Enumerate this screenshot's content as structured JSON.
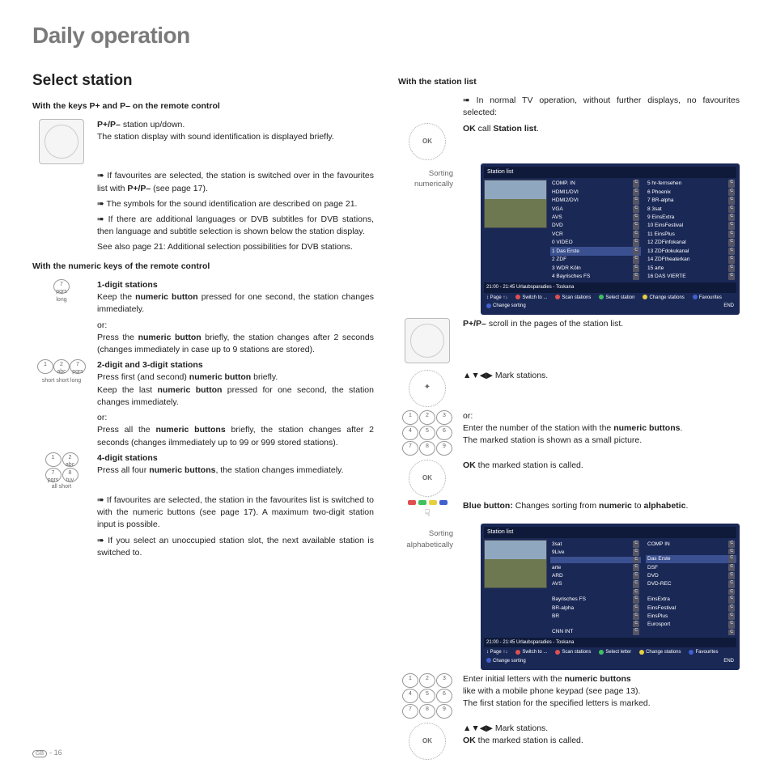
{
  "page": {
    "title": "Daily operation",
    "subtitle": "Select station",
    "number": "16",
    "region": "GB"
  },
  "left": {
    "h_pkeys": "With the keys P+ and P– on the remote control",
    "pkeys_bold": "P+/P–",
    "pkeys_t1": " station up/down.",
    "pkeys_t2": "The station display with sound identification is displayed briefly.",
    "pkeys_b1a": "➠ If favourites are selected, the station is switched over in the favourites list with ",
    "pkeys_b1b": "P+/P–",
    "pkeys_b1c": " (see page 17).",
    "pkeys_b2": "➠ The symbols for the sound identification are described on page 21.",
    "pkeys_b3": "➠ If there are additional languages or DVB subtitles for DVB stations, then language and subtitle selection is shown below the station display.",
    "pkeys_b4": "See also page 21: Additional selection possibilities for DVB stations.",
    "h_numeric": "With the numeric keys of the remote control",
    "d1_h": "1-digit stations",
    "d1_a": "Keep the ",
    "d1_b": "numeric button",
    "d1_c": " pressed for one second, the station changes immediately.",
    "d1_or": "or:",
    "d1_d": "Press the ",
    "d1_e": "numeric button",
    "d1_f": " briefly, the station changes after 2 seconds (changes immediately in case up to 9 stations are stored).",
    "d23_h": "2-digit and 3-digit stations",
    "d23_a": "Press first (and second) ",
    "d23_b": "numeric button",
    "d23_c": " briefly.",
    "d23_d": "Keep the last ",
    "d23_e": "numeric button",
    "d23_f": " pressed for one second, the station changes immediately.",
    "d23_or": "or:",
    "d23_g": "Press all the ",
    "d23_h2": "numeric buttons",
    "d23_i": " briefly, the station changes after 2 seconds (changes ilmmediately up to 99 or 999 stored stations).",
    "d4_h": "4-digit stations",
    "d4_a": "Press all four ",
    "d4_b": "numeric buttons",
    "d4_c": ", the station changes immediately.",
    "fav": "➠ If favourites are selected, the station in the favourites list is switched to with the numeric buttons (see page 17). A maximum two-digit station input is possible.",
    "slot": "➠ If you select an unoccupied station slot, the next available station is switched to.",
    "cap_long": "long",
    "cap_ssl": "short  short  long",
    "cap_all": "all short"
  },
  "right": {
    "h_list": "With the station list",
    "intro": "➠ In normal TV operation, without further displays, no favourites selected:",
    "ok": "OK",
    "ok_call_a": "  call ",
    "ok_call_b": "Station list",
    "ok_call_c": ".",
    "sort_num": "Sorting numerically",
    "scroll_a": "P+/P–",
    "scroll_b": " scroll in the pages of the station list.",
    "mark": "▲▼◀▶  Mark stations.",
    "or": "or:",
    "enter_a": "Enter the number of the station with the ",
    "enter_b": "numeric buttons",
    "enter_c": ".",
    "small": "The marked station is shown as a small picture.",
    "ok2": "OK",
    "ok2_a": "  the marked station is called.",
    "blue_a": "Blue button:",
    "blue_b": " Changes sorting from ",
    "blue_c": "numeric",
    "blue_d": " to ",
    "blue_e": "alphabetic",
    "blue_f": ".",
    "sort_alpha": "Sorting alphabetically",
    "letters_a": "Enter initial letters with the ",
    "letters_b": "numeric buttons",
    "letters_c": "like with a mobile phone keypad (see page 13).",
    "first": "The first station for the specified letters is marked.",
    "mark2": "▲▼◀▶ Mark stations.",
    "ok3": "OK",
    "ok3_a": "  the marked station is called."
  },
  "tv1": {
    "header": "Station list",
    "left": [
      [
        "",
        "COMP. IN"
      ],
      [
        "",
        "HDMI1/DVI"
      ],
      [
        "",
        "HDMI2/DVI"
      ],
      [
        "",
        "VGA"
      ],
      [
        "",
        "AVS"
      ],
      [
        "",
        "DVD"
      ],
      [
        "",
        "VCR"
      ],
      [
        "0",
        "VIDEO"
      ],
      [
        "1",
        "Das Erste"
      ],
      [
        "2",
        "ZDF"
      ],
      [
        "3",
        "WDR Köln"
      ],
      [
        "4",
        "Bayrisches FS"
      ]
    ],
    "right": [
      [
        "5",
        "hr-fernsehen"
      ],
      [
        "6",
        "Phoenix"
      ],
      [
        "7",
        "BR-alpha"
      ],
      [
        "8",
        "3sat"
      ],
      [
        "9",
        "EinsExtra"
      ],
      [
        "10",
        "EinsFestival"
      ],
      [
        "11",
        "EinsPlus"
      ],
      [
        "12",
        "ZDFinfokanal"
      ],
      [
        "13",
        "ZDFdokukanal"
      ],
      [
        "14",
        "ZDFtheaterkan"
      ],
      [
        "15",
        "arte"
      ],
      [
        "16",
        "DAS VIERTE"
      ]
    ],
    "sel_index": 8,
    "footer": "21:00 - 21:45  Urlaubsparadies - Toskana",
    "legend": [
      {
        "c": "#e05050",
        "t": "Switch to ..."
      },
      {
        "c": "#e05050",
        "t": "Scan stations"
      },
      {
        "c": "#40c060",
        "t": "Select station"
      },
      {
        "c": "#e6d040",
        "t": "Change stations"
      },
      {
        "c": "#4060d0",
        "t": "Favourites"
      },
      {
        "c": "#4060d0",
        "t": "Change sorting"
      }
    ],
    "page": "Page ↑↓"
  },
  "tv2": {
    "header": "Station list",
    "left": [
      [
        "3sat",
        ""
      ],
      [
        "9Live",
        ""
      ],
      [
        "",
        ""
      ],
      [
        "arte",
        ""
      ],
      [
        "ARD",
        ""
      ],
      [
        "AVS",
        ""
      ],
      [
        "",
        ""
      ],
      [
        "Bayrisches FS",
        ""
      ],
      [
        "BR-alpha",
        ""
      ],
      [
        "BR",
        ""
      ],
      [
        "",
        ""
      ],
      [
        "CNN INT",
        ""
      ]
    ],
    "right": [
      [
        "COMP IN",
        ""
      ],
      [
        "",
        ""
      ],
      [
        "Das Erste",
        ""
      ],
      [
        "DSF",
        ""
      ],
      [
        "DVD",
        ""
      ],
      [
        "DVD-REC",
        ""
      ],
      [
        "",
        ""
      ],
      [
        "EinsExtra",
        ""
      ],
      [
        "EinsFestival",
        ""
      ],
      [
        "EinsPlus",
        ""
      ],
      [
        "Eurosport",
        ""
      ],
      [
        "",
        ""
      ]
    ],
    "sel_index": 2,
    "footer": "21:00 - 21:45  Urlaubsparadies - Toskana",
    "legend": [
      {
        "c": "#e05050",
        "t": "Switch to ..."
      },
      {
        "c": "#e05050",
        "t": "Scan stations"
      },
      {
        "c": "#40c060",
        "t": "Select letter"
      },
      {
        "c": "#e6d040",
        "t": "Change stations"
      },
      {
        "c": "#4060d0",
        "t": "Favourites"
      },
      {
        "c": "#4060d0",
        "t": "Change sorting"
      }
    ],
    "page": "Page ↑↓"
  },
  "colors": {
    "red": "#e05050",
    "green": "#40c060",
    "yellow": "#e6d040",
    "blue": "#4060d0"
  }
}
